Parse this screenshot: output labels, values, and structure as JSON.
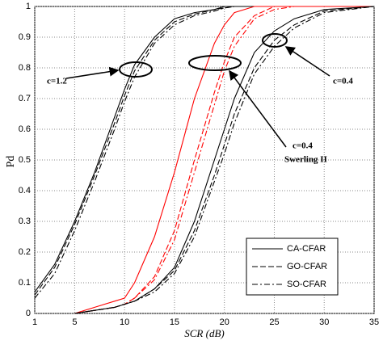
{
  "chart_data": {
    "type": "line",
    "xlabel": "SCR (dB)",
    "ylabel": "Pd",
    "x": [
      1,
      3,
      5,
      7,
      9,
      10,
      11,
      13,
      15,
      17,
      19,
      20,
      21,
      23,
      25,
      27,
      30,
      35
    ],
    "xlim": [
      1,
      35
    ],
    "xticks": [
      1,
      5,
      10,
      15,
      20,
      25,
      30,
      35
    ],
    "ylim": [
      0,
      1
    ],
    "yticks": [
      0,
      0.1,
      0.2,
      0.3,
      0.4,
      0.5,
      0.6,
      0.7,
      0.8,
      0.9,
      1
    ],
    "grid": true,
    "legend": "lower right",
    "series": [
      {
        "name": "CA-CFAR",
        "color": "#000000",
        "dash": "solid",
        "values": [
          0.07,
          0.16,
          0.3,
          0.46,
          0.64,
          0.73,
          0.81,
          0.9,
          0.96,
          0.98,
          0.99,
          1,
          1,
          1,
          1,
          1,
          1,
          1
        ]
      },
      {
        "name": "GO-CFAR",
        "color": "#000000",
        "dash": "dash",
        "values": [
          0.06,
          0.15,
          0.29,
          0.45,
          0.62,
          0.71,
          0.79,
          0.89,
          0.95,
          0.975,
          0.99,
          0.995,
          1,
          1,
          1,
          1,
          1,
          1
        ]
      },
      {
        "name": "SO-CFAR",
        "color": "#000000",
        "dash": "dashdot",
        "values": [
          0.05,
          0.13,
          0.27,
          0.43,
          0.6,
          0.69,
          0.77,
          0.88,
          0.94,
          0.97,
          0.985,
          0.995,
          1,
          1,
          1,
          1,
          1,
          1
        ]
      },
      {
        "name": "CA-CFAR",
        "color": "#ff0000",
        "dash": "solid",
        "values": [
          null,
          null,
          0,
          0.02,
          0.04,
          0.05,
          0.1,
          0.25,
          0.46,
          0.7,
          0.88,
          0.94,
          0.98,
          1,
          1,
          1,
          1,
          1
        ]
      },
      {
        "name": "GO-CFAR",
        "color": "#ff0000",
        "dash": "dash",
        "values": [
          null,
          null,
          0,
          0.01,
          0.02,
          0.03,
          0.05,
          0.12,
          0.27,
          0.5,
          0.72,
          0.82,
          0.9,
          0.97,
          1,
          1,
          1,
          1
        ]
      },
      {
        "name": "SO-CFAR",
        "color": "#ff0000",
        "dash": "dashdot",
        "values": [
          null,
          null,
          0,
          0.01,
          0.02,
          0.03,
          0.05,
          0.11,
          0.24,
          0.46,
          0.68,
          0.79,
          0.87,
          0.96,
          0.99,
          1,
          1,
          1
        ]
      },
      {
        "name": "CA-CFAR",
        "color": "#000000",
        "dash": "solid",
        "values": [
          null,
          null,
          0,
          0.01,
          0.02,
          0.03,
          0.04,
          0.08,
          0.15,
          0.3,
          0.5,
          0.6,
          0.7,
          0.85,
          0.92,
          0.96,
          0.99,
          1
        ]
      },
      {
        "name": "GO-CFAR",
        "color": "#000000",
        "dash": "dash",
        "values": [
          null,
          null,
          0,
          0.01,
          0.02,
          0.03,
          0.04,
          0.08,
          0.14,
          0.27,
          0.45,
          0.55,
          0.65,
          0.8,
          0.89,
          0.94,
          0.985,
          1
        ]
      },
      {
        "name": "SO-CFAR",
        "color": "#000000",
        "dash": "dashdot",
        "values": [
          null,
          null,
          0,
          0.01,
          0.02,
          0.03,
          0.04,
          0.07,
          0.13,
          0.25,
          0.43,
          0.52,
          0.62,
          0.78,
          0.87,
          0.93,
          0.98,
          1
        ]
      }
    ],
    "annotations": [
      "c=1.2",
      "c=0.4",
      "c=0.4",
      "Swerling II"
    ]
  }
}
